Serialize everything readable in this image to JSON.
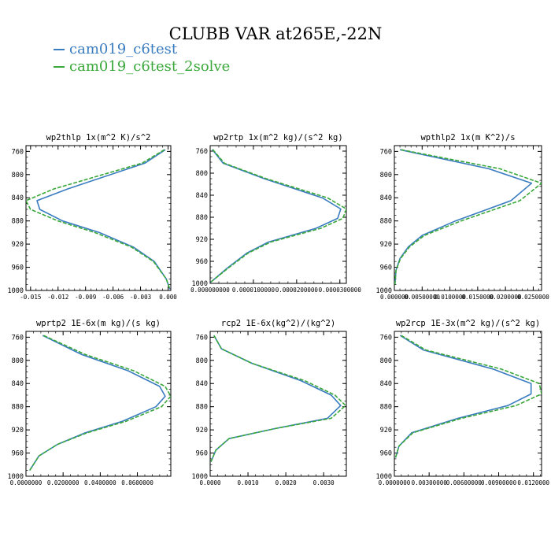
{
  "figure": {
    "title": "CLUBB VAR at265E,-22N",
    "legend": [
      {
        "name": "cam019_c6test",
        "color": "#3a7cc0"
      },
      {
        "name": "cam019_c6test_2solve",
        "color": "#3aa83a"
      }
    ]
  },
  "chart_data": [
    {
      "type": "line",
      "title": "wp2thlp  1x(m^2 K)/s^2",
      "y": [
        757,
        780,
        825,
        845,
        860,
        880,
        900,
        925,
        950,
        980,
        998
      ],
      "ylim": [
        1000,
        750
      ],
      "yticks": [
        "760",
        "800",
        "840",
        "880",
        "920",
        "960",
        "1000"
      ],
      "xlim": [
        -0.0155,
        0.0003
      ],
      "xticks": [
        -0.015,
        -0.012,
        -0.009,
        -0.006,
        -0.003,
        0.0
      ],
      "xticklabels": [
        "-0.015",
        "-0.012",
        "-0.009",
        "-0.006",
        "-0.003",
        "0.000"
      ],
      "series": [
        {
          "name": "cam019_c6test",
          "color": "#3a7cc0",
          "dash": false,
          "x": [
            -0.0003,
            -0.0025,
            -0.011,
            -0.0143,
            -0.014,
            -0.0115,
            -0.0075,
            -0.0038,
            -0.0015,
            -0.0002,
            0.0002
          ]
        },
        {
          "name": "cam019_c6test_2solve",
          "color": "#3aa83a",
          "dash": true,
          "x": [
            -0.0004,
            -0.0028,
            -0.0125,
            -0.0155,
            -0.015,
            -0.012,
            -0.008,
            -0.004,
            -0.0016,
            -0.0002,
            0.0002
          ]
        }
      ]
    },
    {
      "type": "line",
      "title": "wp2rtp  1x(m^2 kg)/(s^2 kg)",
      "y": [
        757,
        782,
        810,
        845,
        865,
        882,
        900,
        925,
        945,
        972,
        998
      ],
      "ylim": [
        1000,
        750
      ],
      "yticks": [
        "760",
        "800",
        "840",
        "880",
        "920",
        "960",
        "1000"
      ],
      "xlim": [
        0,
        3.15e-05
      ],
      "xticks": [
        0,
        1e-05,
        2e-05,
        3e-05
      ],
      "xticklabels": [
        "0.000000000",
        "0.0000100000",
        "0.0000200000",
        "0.0000300000"
      ],
      "series": [
        {
          "name": "cam019_c6test",
          "color": "#3a7cc0",
          "dash": false,
          "x": [
            5e-07,
            3e-06,
            1.25e-05,
            2.6e-05,
            3.02e-05,
            2.95e-05,
            2.45e-05,
            1.35e-05,
            8.5e-06,
            4e-06,
            1e-07
          ]
        },
        {
          "name": "cam019_c6test_2solve",
          "color": "#3aa83a",
          "dash": true,
          "x": [
            6e-07,
            3.3e-06,
            1.3e-05,
            2.72e-05,
            3.15e-05,
            3.07e-05,
            2.56e-05,
            1.4e-05,
            8.8e-06,
            4.2e-06,
            1e-07
          ]
        }
      ]
    },
    {
      "type": "line",
      "title": "wpthlp2  1x(m K^2)/s",
      "y": [
        757,
        790,
        815,
        845,
        880,
        905,
        925,
        945,
        965,
        990
      ],
      "ylim": [
        1000,
        750
      ],
      "yticks": [
        "760",
        "800",
        "840",
        "880",
        "920",
        "960",
        "1000"
      ],
      "xlim": [
        0,
        0.0265
      ],
      "xticks": [
        0,
        0.005,
        0.01,
        0.015,
        0.02,
        0.025
      ],
      "xticklabels": [
        "0.000000",
        "0.00500000",
        "0.0100000",
        "0.0150000",
        "0.0200000",
        "0.0250000"
      ],
      "series": [
        {
          "name": "cam019_c6test",
          "color": "#3a7cc0",
          "dash": false,
          "x": [
            0.001,
            0.017,
            0.0247,
            0.021,
            0.011,
            0.005,
            0.0025,
            0.001,
            0.0003,
            0.0001
          ]
        },
        {
          "name": "cam019_c6test_2solve",
          "color": "#3aa83a",
          "dash": true,
          "x": [
            0.0012,
            0.019,
            0.0265,
            0.0226,
            0.012,
            0.0054,
            0.0027,
            0.0011,
            0.0003,
            0.0001
          ]
        }
      ]
    },
    {
      "type": "line",
      "title": "wprtp2  1E-6x(m kg)/(s kg)",
      "y": [
        757,
        790,
        818,
        845,
        862,
        880,
        905,
        925,
        945,
        965,
        990
      ],
      "ylim": [
        1000,
        750
      ],
      "yticks": [
        "760",
        "800",
        "840",
        "880",
        "920",
        "960",
        "1000"
      ],
      "xlim": [
        0,
        0.078
      ],
      "xticks": [
        0,
        0.02,
        0.04,
        0.06
      ],
      "xticklabels": [
        "0.0000000",
        "0.0200000",
        "0.0400000",
        "0.0600000"
      ],
      "series": [
        {
          "name": "cam019_c6test",
          "color": "#3a7cc0",
          "dash": false,
          "x": [
            0.009,
            0.03,
            0.055,
            0.072,
            0.075,
            0.07,
            0.052,
            0.032,
            0.017,
            0.007,
            0.002
          ]
        },
        {
          "name": "cam019_c6test_2solve",
          "color": "#3aa83a",
          "dash": true,
          "x": [
            0.0095,
            0.032,
            0.058,
            0.075,
            0.078,
            0.073,
            0.054,
            0.033,
            0.017,
            0.007,
            0.002
          ]
        }
      ]
    },
    {
      "type": "line",
      "title": "rcp2  1E-6x(kg^2)/(kg^2)",
      "y": [
        757,
        780,
        805,
        835,
        860,
        878,
        900,
        918,
        935,
        955,
        975
      ],
      "ylim": [
        1000,
        750
      ],
      "yticks": [
        "760",
        "800",
        "840",
        "880",
        "920",
        "960",
        "1000"
      ],
      "xlim": [
        0,
        0.0036
      ],
      "xticks": [
        0,
        0.001,
        0.002,
        0.003
      ],
      "xticklabels": [
        "0.0000",
        "0.0010",
        "0.0020",
        "0.0030"
      ],
      "series": [
        {
          "name": "cam019_c6test",
          "color": "#3a7cc0",
          "dash": false,
          "x": [
            0.0001,
            0.0003,
            0.0011,
            0.0024,
            0.0032,
            0.00345,
            0.0031,
            0.0017,
            0.0005,
            0.00015,
            2e-05
          ]
        },
        {
          "name": "cam019_c6test_2solve",
          "color": "#3aa83a",
          "dash": true,
          "x": [
            0.0001,
            0.0003,
            0.0011,
            0.0025,
            0.0033,
            0.00358,
            0.0032,
            0.0017,
            0.0005,
            0.00015,
            2e-05
          ]
        }
      ]
    },
    {
      "type": "line",
      "title": "wp2rcp  1E-3x(m^2 kg)/(s^2 kg)",
      "y": [
        757,
        782,
        815,
        840,
        858,
        878,
        900,
        925,
        948,
        968
      ],
      "ylim": [
        1000,
        750
      ],
      "yticks": [
        "760",
        "800",
        "840",
        "880",
        "920",
        "960",
        "1000"
      ],
      "xlim": [
        0,
        0.0127
      ],
      "xticks": [
        0,
        0.003,
        0.006,
        0.009,
        0.012
      ],
      "xticklabels": [
        "0.0000000",
        "0.00300000",
        "0.00600000",
        "0.00900000",
        "0.0120000"
      ],
      "series": [
        {
          "name": "cam019_c6test",
          "color": "#3a7cc0",
          "dash": false,
          "x": [
            0.0005,
            0.0025,
            0.0085,
            0.0118,
            0.0118,
            0.0098,
            0.0055,
            0.0015,
            0.0004,
            0.0001
          ]
        },
        {
          "name": "cam019_c6test_2solve",
          "color": "#3aa83a",
          "dash": true,
          "x": [
            0.0006,
            0.0027,
            0.0092,
            0.0125,
            0.0127,
            0.0105,
            0.0058,
            0.0016,
            0.0004,
            0.0001
          ]
        }
      ]
    }
  ]
}
